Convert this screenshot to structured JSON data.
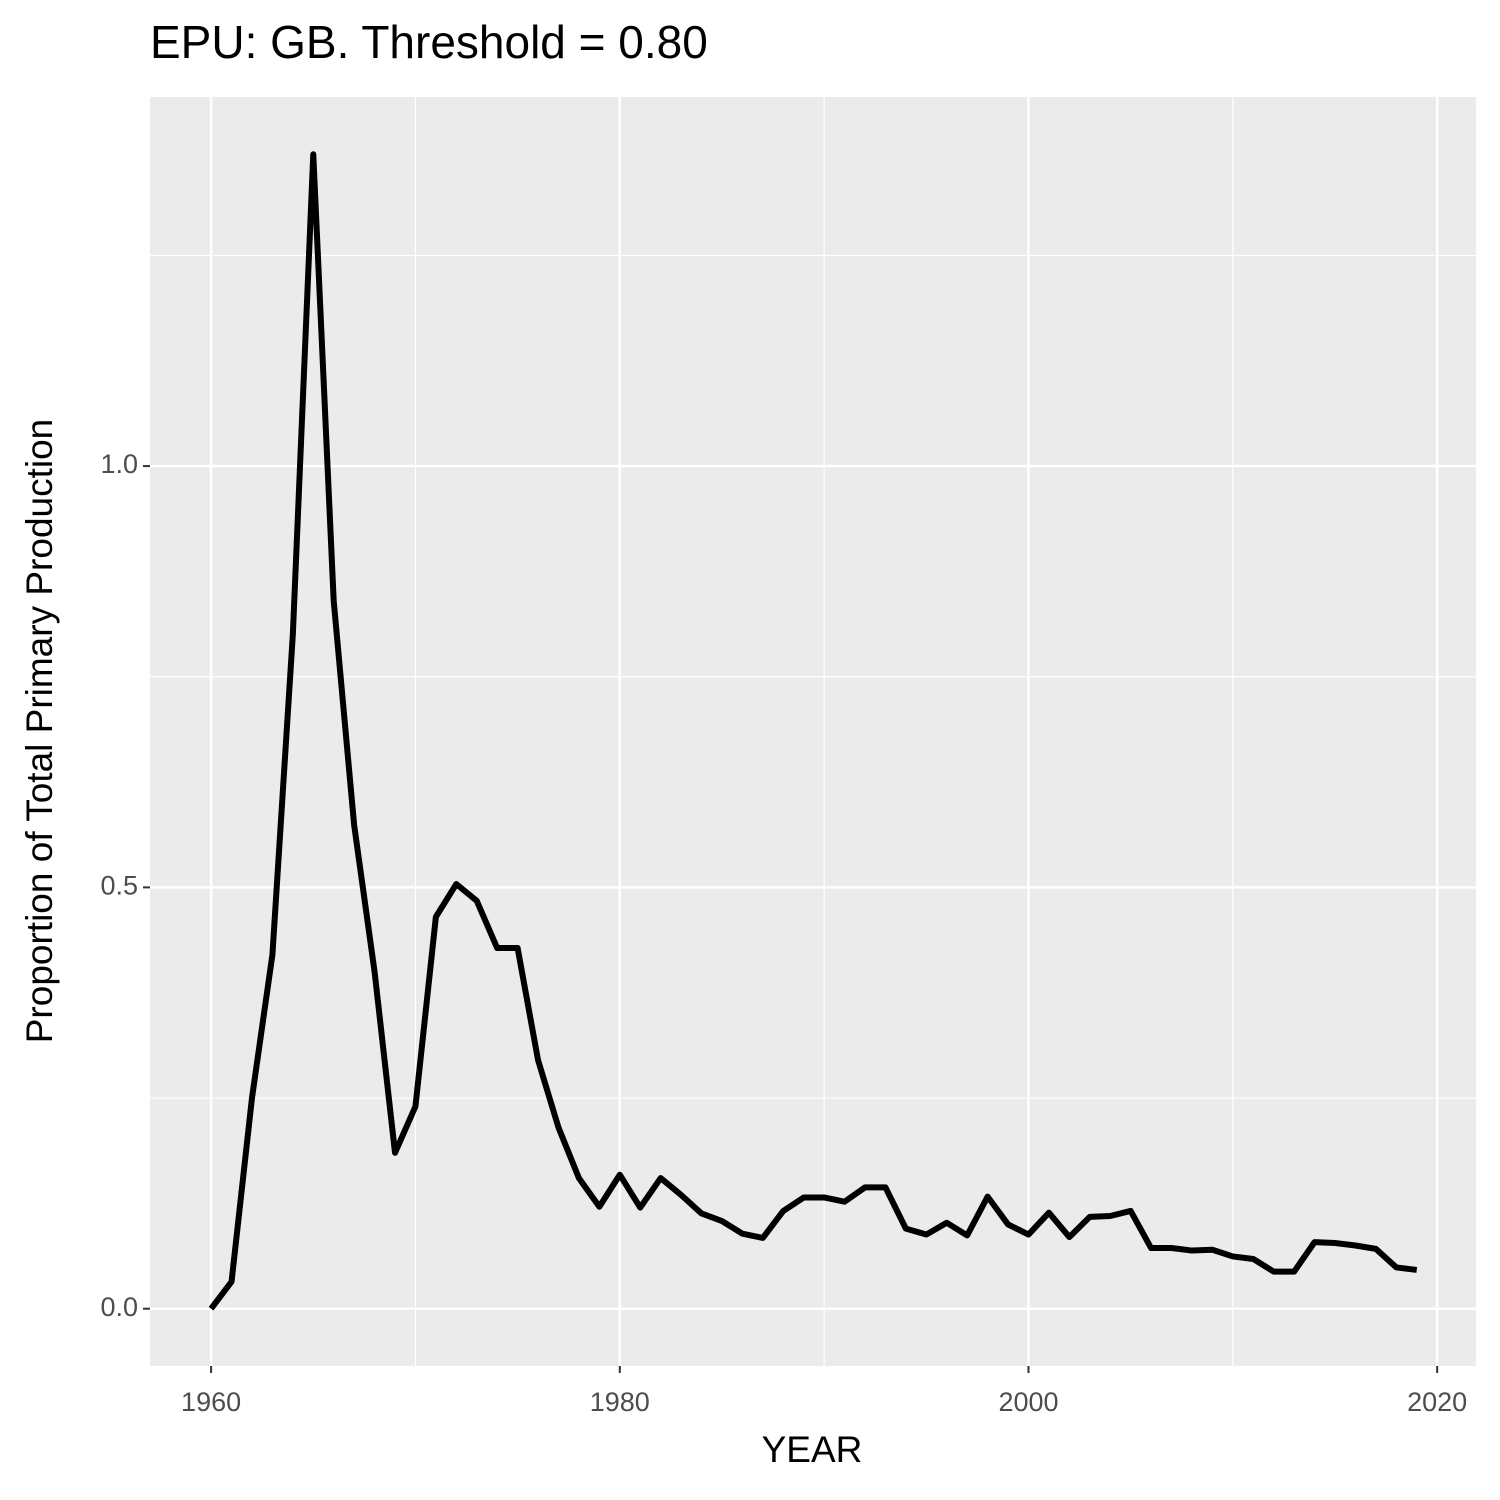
{
  "chart_data": {
    "type": "line",
    "title": "EPU: GB. Threshold = 0.80",
    "x_label": "YEAR",
    "y_label": "Proportion of Total Primary Production",
    "x": [
      1960,
      1961,
      1962,
      1963,
      1964,
      1965,
      1966,
      1967,
      1968,
      1969,
      1970,
      1971,
      1972,
      1973,
      1974,
      1975,
      1976,
      1977,
      1978,
      1979,
      1980,
      1981,
      1982,
      1983,
      1984,
      1985,
      1986,
      1987,
      1988,
      1989,
      1990,
      1991,
      1992,
      1993,
      1994,
      1995,
      1996,
      1997,
      1998,
      1999,
      2000,
      2001,
      2002,
      2003,
      2004,
      2005,
      2006,
      2007,
      2008,
      2009,
      2010,
      2011,
      2012,
      2013,
      2014,
      2015,
      2016,
      2017,
      2018,
      2019
    ],
    "values": [
      0.0,
      0.032,
      0.25,
      0.42,
      0.8,
      1.37,
      0.84,
      0.574,
      0.4,
      0.185,
      0.24,
      0.465,
      0.504,
      0.484,
      0.428,
      0.428,
      0.295,
      0.215,
      0.155,
      0.121,
      0.159,
      0.12,
      0.155,
      0.135,
      0.113,
      0.104,
      0.089,
      0.084,
      0.116,
      0.132,
      0.132,
      0.127,
      0.144,
      0.144,
      0.095,
      0.088,
      0.102,
      0.087,
      0.133,
      0.1,
      0.088,
      0.114,
      0.085,
      0.109,
      0.11,
      0.116,
      0.072,
      0.072,
      0.069,
      0.07,
      0.062,
      0.059,
      0.044,
      0.044,
      0.079,
      0.078,
      0.075,
      0.071,
      0.049,
      0.046
    ],
    "color": "#000000",
    "xlim": [
      1957.01,
      2021.9
    ],
    "ylim": [
      -0.068,
      1.438
    ],
    "xticks": [
      1960,
      1980,
      2000,
      2020
    ],
    "yticks": [
      {
        "value": 0,
        "label": "0.0"
      },
      0.5,
      {
        "value": 1,
        "label": "1.0"
      }
    ],
    "x_minor_grid": [
      1970,
      1990,
      2010
    ],
    "y_minor_grid": [
      0.25,
      0.75,
      1.25
    ],
    "grid": true
  }
}
